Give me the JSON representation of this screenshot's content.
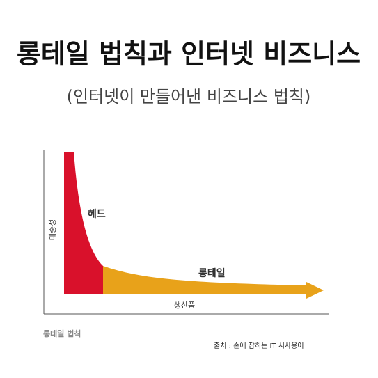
{
  "header": {
    "title": "롱테일 법칙과 인터넷 비즈니스",
    "subtitle": "(인터넷이 만들어낸 비즈니스 법칙)"
  },
  "diagram": {
    "y_axis_label": "대중성",
    "x_axis_label": "생산품",
    "head_label": "헤드",
    "tail_label": "롱테일",
    "caption": "롱테일 법칙"
  },
  "footer": {
    "source": "출처 : 손에 잡히는 IT 시사용어"
  }
}
